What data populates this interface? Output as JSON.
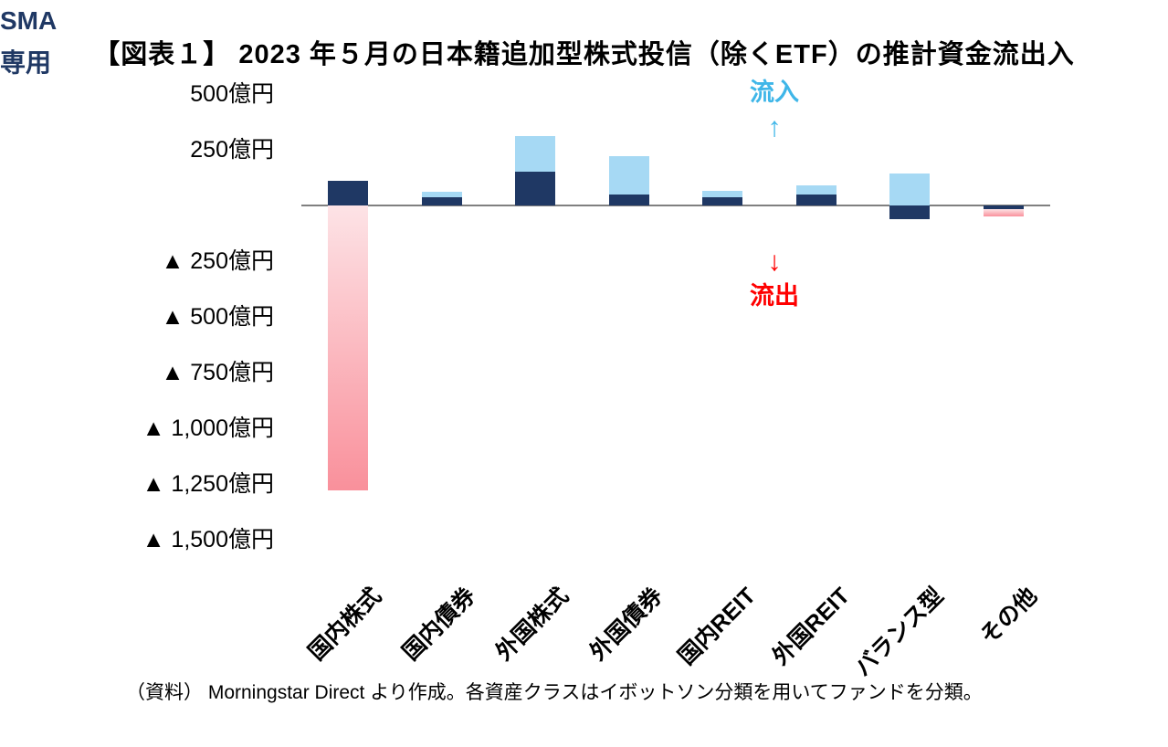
{
  "page": {
    "title": "【図表１】 2023 年５月の日本籍追加型株式投信（除くETF）の推計資金流出入",
    "source_note": "（資料） Morningstar Direct より作成。各資産クラスはイボットソン分類を用いてファンドを分類。"
  },
  "annotations": {
    "inflow_label": "流入",
    "inflow_arrow": "↑",
    "outflow_arrow": "↓",
    "outflow_label": "流出",
    "sma_line1": "SMA",
    "sma_line2": "専用"
  },
  "colors": {
    "navy": "#1f3864",
    "light_blue": "#a6d9f4",
    "pink_top": "#fde3e6",
    "pink_bottom": "#f9909b",
    "axis_line": "#808080",
    "inflow_text": "#3fb6e8",
    "outflow_text": "#ff0000",
    "sma_text": "#1f3864",
    "text": "#000000"
  },
  "chart_data": {
    "type": "bar",
    "title": "2023年5月の日本籍追加型株式投信（除くETF）の推計資金流出入",
    "unit": "億円",
    "ylim": [
      -1500,
      500
    ],
    "grid": false,
    "legend_position": "none",
    "y_ticks": [
      {
        "label": "500億円",
        "value": 500
      },
      {
        "label": "250億円",
        "value": 250
      },
      {
        "label": "▲ 250億円",
        "value": -250
      },
      {
        "label": "▲ 500億円",
        "value": -500
      },
      {
        "label": "▲ 750億円",
        "value": -750
      },
      {
        "label": "▲ 1,000億円",
        "value": -1000
      },
      {
        "label": "▲ 1,250億円",
        "value": -1250
      },
      {
        "label": "▲ 1,500億円",
        "value": -1500
      }
    ],
    "categories": [
      "国内株式",
      "国内債券",
      "外国株式",
      "外国債券",
      "国内REIT",
      "外国REIT",
      "バランス型",
      "その他"
    ],
    "segment_legend": {
      "navy": "SMA専用",
      "blue": "流入",
      "pink": "流出"
    },
    "bars": [
      {
        "category": "国内株式",
        "segments": [
          {
            "color": "navy",
            "value": 110
          },
          {
            "color": "pink",
            "value": -1280
          }
        ]
      },
      {
        "category": "国内債券",
        "segments": [
          {
            "color": "navy",
            "value": 35
          },
          {
            "color": "blue",
            "value": 25
          }
        ]
      },
      {
        "category": "外国株式",
        "segments": [
          {
            "color": "navy",
            "value": 150
          },
          {
            "color": "blue",
            "value": 160
          }
        ]
      },
      {
        "category": "外国債券",
        "segments": [
          {
            "color": "navy",
            "value": 50
          },
          {
            "color": "blue",
            "value": 170
          }
        ]
      },
      {
        "category": "国内REIT",
        "segments": [
          {
            "color": "navy",
            "value": 35
          },
          {
            "color": "blue",
            "value": 30
          }
        ]
      },
      {
        "category": "外国REIT",
        "segments": [
          {
            "color": "navy",
            "value": 50
          },
          {
            "color": "blue",
            "value": 40
          }
        ]
      },
      {
        "category": "バランス型",
        "segments": [
          {
            "color": "blue",
            "value": 145
          },
          {
            "color": "navy",
            "value": -60
          }
        ]
      },
      {
        "category": "その他",
        "segments": [
          {
            "color": "navy",
            "value": -15
          },
          {
            "color": "pink",
            "value": -35
          }
        ]
      }
    ]
  }
}
